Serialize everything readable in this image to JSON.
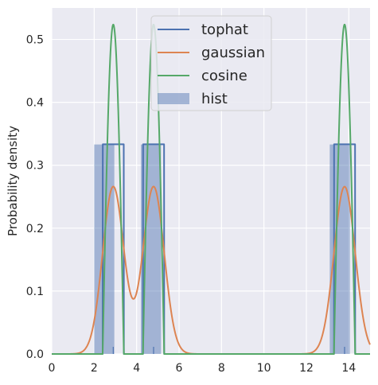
{
  "chart_data": {
    "type": "line",
    "xlabel": "",
    "ylabel": "Probability density",
    "xlim": [
      0,
      15
    ],
    "ylim": [
      0,
      0.55
    ],
    "x_ticks": [
      "0",
      "2",
      "4",
      "6",
      "8",
      "10",
      "12",
      "14"
    ],
    "y_ticks": [
      "0.0",
      "0.1",
      "0.2",
      "0.3",
      "0.4",
      "0.5"
    ],
    "grid": true,
    "legend_position": "top-center",
    "background": "#eaeaf2",
    "sample_points": [
      2.9,
      4.8,
      13.8
    ],
    "bandwidth": 0.5,
    "hist": {
      "name": "hist",
      "color": "#4c72b0",
      "bins": [
        {
          "x0": 2.0,
          "x1": 2.95,
          "height": 0.333
        },
        {
          "x0": 4.2,
          "x1": 5.15,
          "height": 0.333
        },
        {
          "x0": 13.1,
          "x1": 14.05,
          "height": 0.333
        }
      ]
    },
    "series": [
      {
        "name": "tophat",
        "color": "#4c72b0",
        "kernel": "tophat"
      },
      {
        "name": "gaussian",
        "color": "#dd8452",
        "kernel": "gaussian"
      },
      {
        "name": "cosine",
        "color": "#55a868",
        "kernel": "cosine"
      }
    ]
  }
}
